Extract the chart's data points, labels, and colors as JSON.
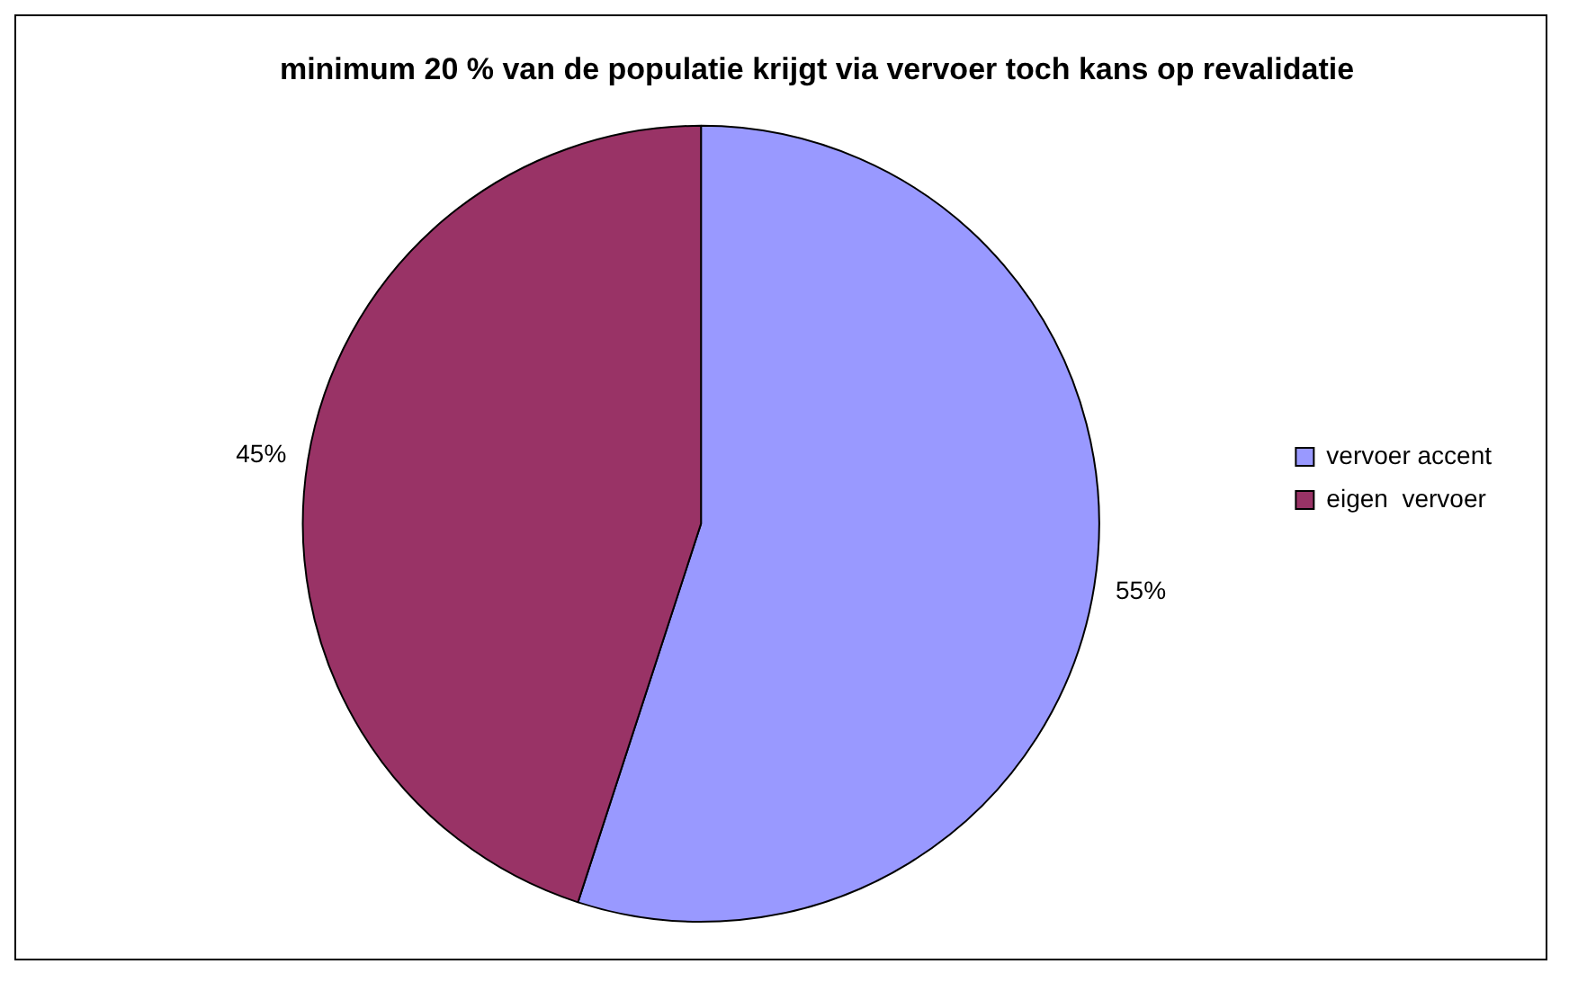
{
  "chart_data": {
    "type": "pie",
    "title": "minimum 20 % van de populatie krijgt via vervoer toch kans op revalidatie",
    "categories": [
      "vervoer accent",
      "eigen  vervoer"
    ],
    "values": [
      55,
      45
    ],
    "colors": [
      "#9999ff",
      "#993366"
    ],
    "value_labels": [
      "55%",
      "45%"
    ],
    "legend": "right"
  }
}
